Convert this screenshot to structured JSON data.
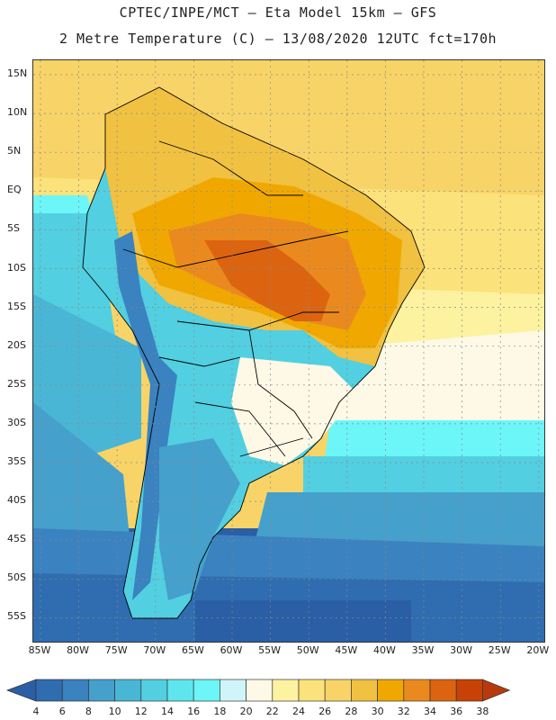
{
  "header": {
    "line1": "CPTEC/INPE/MCT –  Eta Model 15km – GFS",
    "line2": "2 Metre Temperature (C) – 13/08/2020 12UTC fct=170h"
  },
  "map": {
    "region": "South America",
    "lat_labels": [
      "15N",
      "10N",
      "5N",
      "EQ",
      "5S",
      "10S",
      "15S",
      "20S",
      "25S",
      "30S",
      "35S",
      "40S",
      "45S",
      "50S",
      "55S"
    ],
    "lon_labels": [
      "85W",
      "80W",
      "75W",
      "70W",
      "65W",
      "60W",
      "55W",
      "50W",
      "45W",
      "40W",
      "35W",
      "30W",
      "25W",
      "20W"
    ]
  },
  "colorbar": {
    "labels": [
      "4",
      "6",
      "8",
      "10",
      "12",
      "14",
      "16",
      "18",
      "20",
      "22",
      "24",
      "26",
      "28",
      "30",
      "32",
      "34",
      "36",
      "38"
    ],
    "colors": [
      "#2a5ea5",
      "#2f6db0",
      "#3a82c0",
      "#45a0cc",
      "#4ab6d6",
      "#52cfe0",
      "#5ee6ee",
      "#6cf6f8",
      "#cff5fb",
      "#fdf9e6",
      "#fdf2a0",
      "#fbe27a",
      "#f8d468",
      "#f1c141",
      "#f0a800",
      "#ea8a1e",
      "#dc6410",
      "#c84206",
      "#b83a0c"
    ]
  }
}
